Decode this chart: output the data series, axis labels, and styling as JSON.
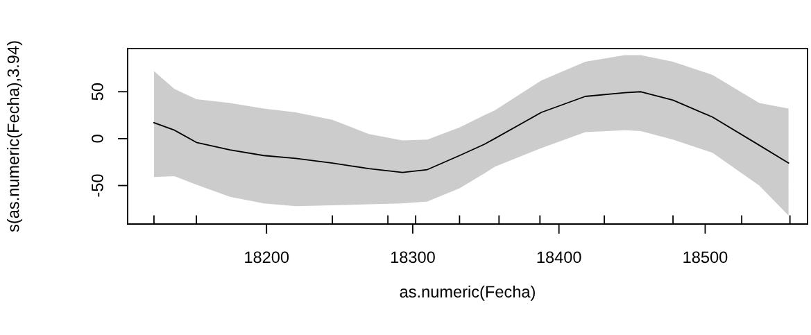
{
  "chart_data": {
    "type": "line",
    "xlabel": "as.numeric(Fecha)",
    "ylabel": "s(as.numeric(Fecha),3.94)",
    "xlim": [
      18105,
      18570
    ],
    "ylim": [
      -91,
      96
    ],
    "yticks": [
      -50,
      0,
      50
    ],
    "grid": false,
    "xticks": [
      {
        "value": 18123,
        "label": null
      },
      {
        "value": 18152,
        "label": null
      },
      18200,
      {
        "value": 18245,
        "label": null
      },
      {
        "value": 18283,
        "label": null
      },
      18300,
      {
        "value": 18302,
        "label": null
      },
      {
        "value": 18332,
        "label": null
      },
      {
        "value": 18359,
        "label": null
      },
      {
        "value": 18387,
        "label": null
      },
      18400,
      {
        "value": 18431,
        "label": null
      },
      {
        "value": 18478,
        "label": null
      },
      18500,
      {
        "value": 18525,
        "label": null
      },
      {
        "value": 18558,
        "label": null
      }
    ],
    "series": [
      {
        "color": "#000000",
        "x": [
          18123,
          18137,
          18152,
          18175,
          18198,
          18220,
          18245,
          18270,
          18293,
          18310,
          18332,
          18349,
          18356,
          18388,
          18418,
          18445,
          18456,
          18478,
          18505,
          18537,
          18557
        ],
        "values": [
          17,
          9,
          -4,
          -12,
          -18,
          -21,
          -26,
          -32,
          -36,
          -33,
          -18,
          -6,
          0,
          28,
          45,
          49,
          50,
          41,
          23,
          -7,
          -26
        ],
        "upper": [
          72,
          53,
          42,
          38,
          32,
          28,
          20,
          5,
          -2,
          -1,
          12,
          25,
          30,
          62,
          82,
          89,
          89,
          82,
          68,
          38,
          32
        ],
        "lower": [
          -41,
          -40,
          -49,
          -62,
          -69,
          -72,
          -71,
          -70,
          -69,
          -67,
          -53,
          -37,
          -30,
          -10,
          7,
          9,
          8,
          -1,
          -15,
          -50,
          -82
        ]
      }
    ]
  }
}
